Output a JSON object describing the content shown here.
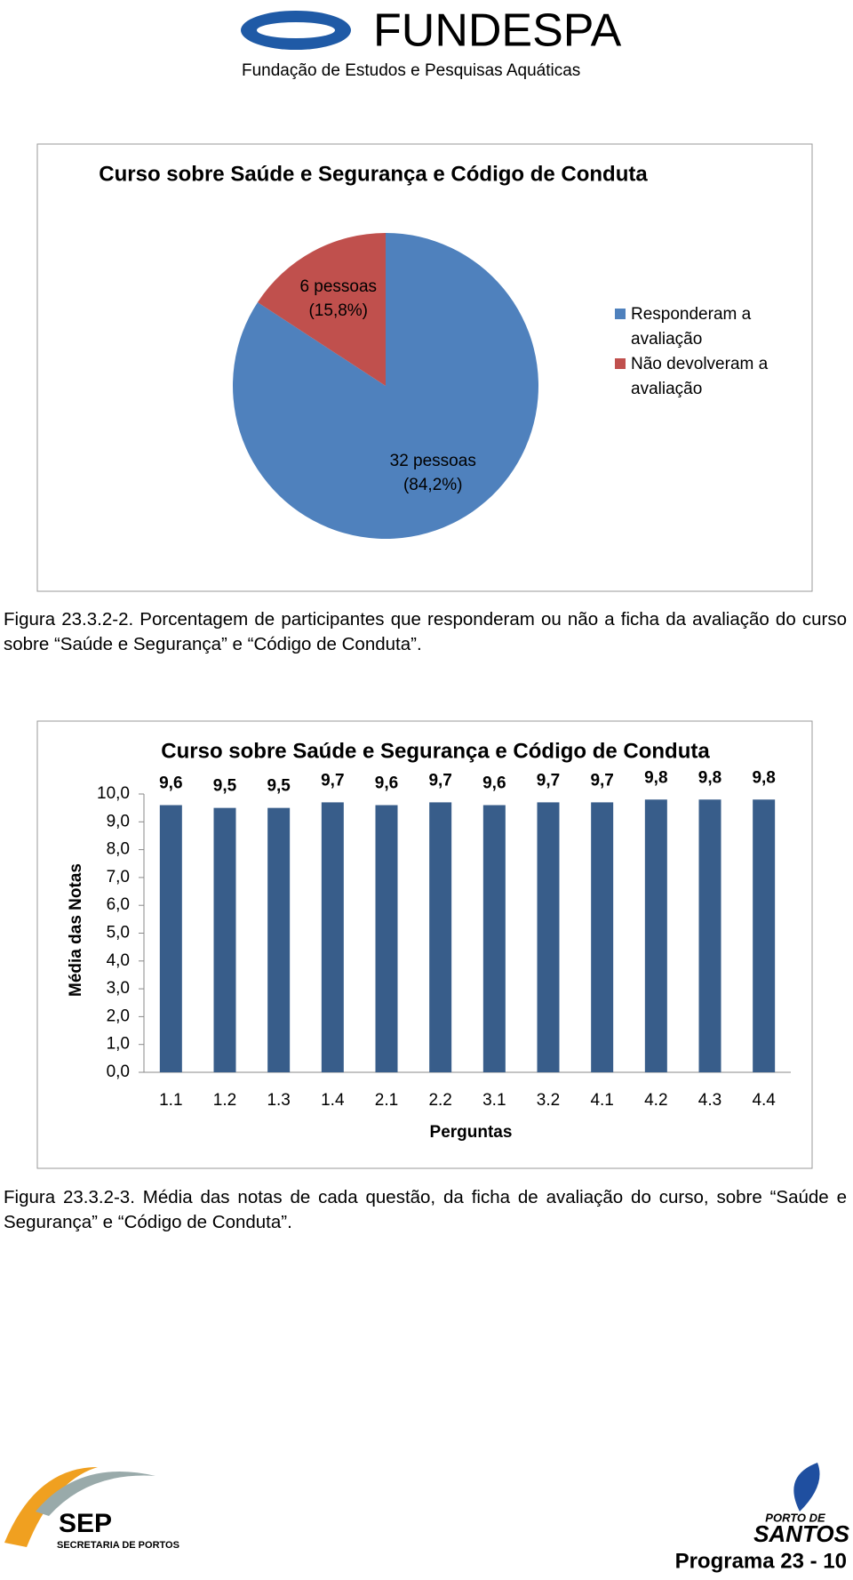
{
  "header": {
    "logo_title": "FUNDESPA",
    "logo_subtitle": "Fundação de Estudos e Pesquisas Aquáticas"
  },
  "chart_data": [
    {
      "type": "pie",
      "title": "Curso sobre Saúde e Segurança e Código de Conduta",
      "categories": [
        "Responderam a avaliação",
        "Não devolveram a avaliação"
      ],
      "values": [
        84.2,
        15.8
      ],
      "value_labels": [
        "32 pessoas (84,2%)",
        "6 pessoas (15,8%)"
      ],
      "colors": [
        "#4f81bd",
        "#c0504d"
      ],
      "legend": "right"
    },
    {
      "type": "bar",
      "title": "Curso sobre Saúde e Segurança e Código de Conduta",
      "x_label": "Perguntas",
      "y_label": "Média das Notas",
      "categories": [
        "1.1",
        "1.2",
        "1.3",
        "1.4",
        "2.1",
        "2.2",
        "3.1",
        "3.2",
        "4.1",
        "4.2",
        "4.3",
        "4.4"
      ],
      "values": [
        9.6,
        9.5,
        9.5,
        9.7,
        9.6,
        9.7,
        9.6,
        9.7,
        9.7,
        9.8,
        9.8,
        9.8
      ],
      "value_labels": [
        "9,6",
        "9,5",
        "9,5",
        "9,7",
        "9,6",
        "9,7",
        "9,6",
        "9,7",
        "9,7",
        "9,8",
        "9,8",
        "9,8"
      ],
      "color": "#385d8a",
      "ylim": [
        0,
        10
      ],
      "yticks": [
        {
          "value": 0,
          "label": "0,0"
        },
        {
          "value": 1,
          "label": "1,0"
        },
        {
          "value": 2,
          "label": "2,0"
        },
        {
          "value": 3,
          "label": "3,0"
        },
        {
          "value": 4,
          "label": "4,0"
        },
        {
          "value": 5,
          "label": "5,0"
        },
        {
          "value": 6,
          "label": "6,0"
        },
        {
          "value": 7,
          "label": "7,0"
        },
        {
          "value": 8,
          "label": "8,0"
        },
        {
          "value": 9,
          "label": "9,0"
        },
        {
          "value": 10,
          "label": "10,0"
        }
      ],
      "grid": false
    }
  ],
  "captions": [
    "Figura 23.3.2-2. Porcentagem de participantes que responderam ou não a ficha da avaliação do curso sobre “Saúde e Segurança” e “Código de Conduta”.",
    "Figura 23.3.2-3. Média das notas de cada questão, da ficha de avaliação do curso, sobre “Saúde e Segurança” e “Código de Conduta”."
  ],
  "footer": {
    "sep": "SEP",
    "sep_subtitle": "SECRETARIA DE PORTOS",
    "porto": "PORTO DE",
    "santos": "SANTOS",
    "page": "Programa 23 - 10"
  }
}
